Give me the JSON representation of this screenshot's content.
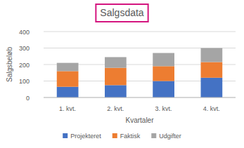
{
  "chart_data": {
    "type": "bar",
    "title": "Salgsdata",
    "x_label": "Kvartaler",
    "y_label": "Salgsbeløb",
    "categories": [
      "1. kvt.",
      "2. kvt.",
      "3. kvt.",
      "4. kvt."
    ],
    "series": [
      {
        "name": "Projekteret",
        "color": "#4472c4",
        "values": [
          65,
          75,
          100,
          120
        ]
      },
      {
        "name": "Faktisk",
        "color": "#ed7d31",
        "values": [
          95,
          105,
          90,
          95
        ]
      },
      {
        "name": "Udgifter",
        "color": "#a5a5a5",
        "values": [
          50,
          65,
          80,
          85
        ]
      }
    ],
    "ylim": [
      0,
      400
    ],
    "yticks": [
      0,
      100,
      200,
      300,
      400
    ],
    "stacked": true,
    "grid": true,
    "legend": "bottom"
  }
}
